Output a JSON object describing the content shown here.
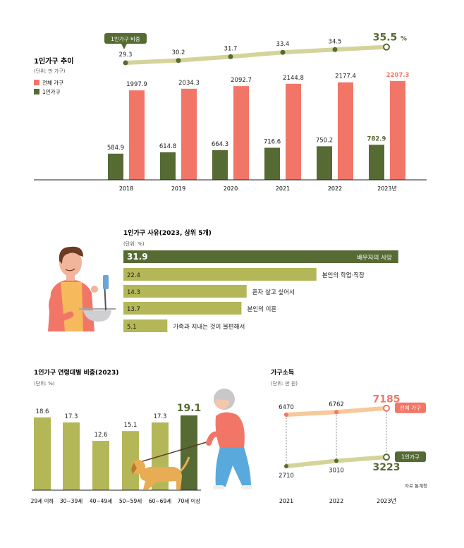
{
  "colors": {
    "total": "#f27667",
    "single": "#566b34",
    "olive": "#b3b757",
    "line_light": "#d4d49a",
    "peach": "#f8c89a",
    "axis": "#222222"
  },
  "chart_data": [
    {
      "id": "households",
      "type": "bar",
      "title": "1인가구 추이",
      "unit": "(단위: 만 가구)",
      "legend": [
        "전체 가구",
        "1인가구"
      ],
      "categories": [
        "2018",
        "2019",
        "2020",
        "2021",
        "2022",
        "2023년"
      ],
      "series": [
        {
          "name": "전체 가구",
          "values": [
            1997.9,
            2034.3,
            2092.7,
            2144.8,
            2177.4,
            2207.3
          ]
        },
        {
          "name": "1인가구",
          "values": [
            584.9,
            614.8,
            664.3,
            716.6,
            750.2,
            782.9
          ]
        }
      ],
      "ylim": [
        0,
        2400
      ]
    },
    {
      "id": "single_ratio",
      "type": "line",
      "label": "1인가구 비중",
      "categories": [
        "2018",
        "2019",
        "2020",
        "2021",
        "2022",
        "2023년"
      ],
      "values": [
        29.3,
        30.2,
        31.7,
        33.4,
        34.5,
        35.5
      ],
      "value_labels": [
        "29.3",
        "30.2",
        "31.7",
        "33.4",
        "34.5",
        "35.5"
      ],
      "last_unit": "%"
    },
    {
      "id": "reasons",
      "type": "bar",
      "orientation": "horizontal",
      "title": "1인가구 사유(2023, 상위 5개)",
      "unit": "(단위: %)",
      "categories": [
        "배우자의 사망",
        "본인의 학업·직장",
        "혼자 살고 싶어서",
        "본인의 이혼",
        "가족과 지내는 것이 불편해서"
      ],
      "values": [
        31.9,
        22.4,
        14.3,
        13.7,
        5.1
      ],
      "value_labels": [
        "31.9",
        "22.4",
        "14.3",
        "13.7",
        "5.1"
      ]
    },
    {
      "id": "age_share",
      "type": "bar",
      "title": "1인가구 연령대별 비중(2023)",
      "unit": "(단위: %)",
      "categories": [
        "29세 이하",
        "30~39세",
        "40~49세",
        "50~59세",
        "60~69세",
        "70세 이상"
      ],
      "values": [
        18.6,
        17.3,
        12.6,
        15.1,
        17.3,
        19.1
      ],
      "value_labels": [
        "18.6",
        "17.3",
        "12.6",
        "15.1",
        "17.3",
        "19.1"
      ],
      "ylim": [
        0,
        20
      ]
    },
    {
      "id": "income",
      "type": "line",
      "title": "가구소득",
      "unit": "(단위: 만 원)",
      "categories": [
        "2021",
        "2022",
        "2023년"
      ],
      "series": [
        {
          "name": "전체 가구",
          "values": [
            6470,
            6762,
            7185
          ],
          "labels": [
            "6470",
            "6762",
            "7185"
          ]
        },
        {
          "name": "1인가구",
          "values": [
            2710,
            3010,
            3223
          ],
          "labels": [
            "2710",
            "3010",
            "3223"
          ]
        }
      ],
      "source": "자료 통계청"
    }
  ]
}
